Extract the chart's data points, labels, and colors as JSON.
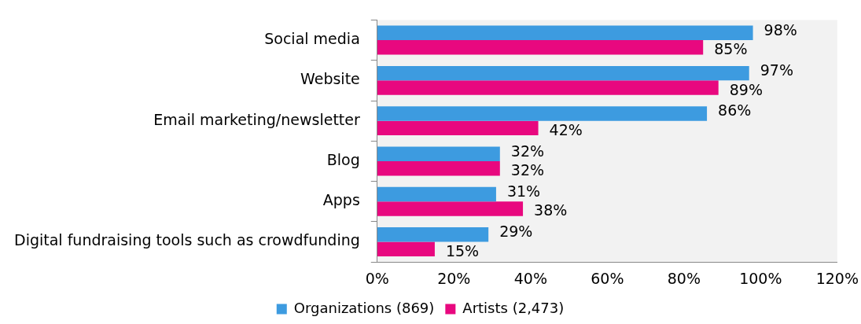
{
  "chart_data": {
    "type": "bar",
    "orientation": "horizontal",
    "categories": [
      "Social media",
      "Website",
      "Email marketing/newsletter",
      "Blog",
      "Apps",
      "Digital fundraising tools such as crowdfunding"
    ],
    "series": [
      {
        "name": "Organizations (869)",
        "color": "#3d9be0",
        "values": [
          98,
          97,
          86,
          32,
          31,
          29
        ],
        "value_labels": [
          "98%",
          "97%",
          "86%",
          "32%",
          "31%",
          "29%"
        ]
      },
      {
        "name": "Artists (2,473)",
        "color": "#e8087f",
        "values": [
          85,
          89,
          42,
          32,
          38,
          15
        ],
        "value_labels": [
          "85%",
          "89%",
          "42%",
          "32%",
          "38%",
          "15%"
        ]
      }
    ],
    "xlim": [
      0,
      120
    ],
    "xticks": [
      {
        "value": 0,
        "label": "0%"
      },
      {
        "value": 20,
        "label": "20%"
      },
      {
        "value": 40,
        "label": "40%"
      },
      {
        "value": 60,
        "label": "60%"
      },
      {
        "value": 80,
        "label": "80%"
      },
      {
        "value": 100,
        "label": "100%"
      },
      {
        "value": 120,
        "label": "120%"
      }
    ],
    "grid": false,
    "legend": "bottom"
  }
}
